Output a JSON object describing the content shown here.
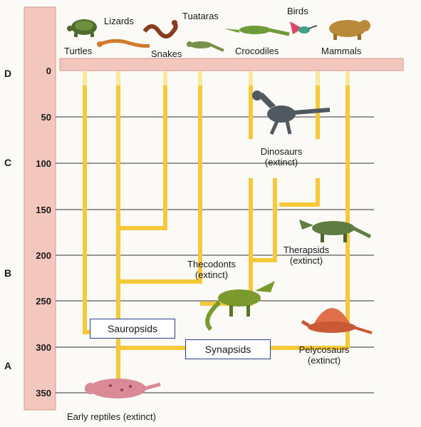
{
  "colors": {
    "time_bar": "#f3c7bd",
    "time_bar_edge": "#d99b8d",
    "branch": "#f5c93a",
    "branch_light": "#fbe89a",
    "box_border": "#2b3f8a",
    "grid_line": "#333333"
  },
  "eras": [
    "D",
    "C",
    "B",
    "A"
  ],
  "time_axis": {
    "ticks": [
      "0",
      "50",
      "100",
      "150",
      "200",
      "250",
      "300",
      "350"
    ],
    "range_million_years_ago": [
      0,
      370
    ]
  },
  "groups": {
    "modern": {
      "turtles": "Turtles",
      "lizards": "Lizards",
      "snakes": "Snakes",
      "tuataras": "Tuataras",
      "crocodiles": "Crocodiles",
      "birds": "Birds",
      "mammals": "Mammals"
    },
    "dinosaurs": [
      "Dinosaurs",
      "(extinct)"
    ],
    "therapsids": [
      "Therapsids",
      "(extinct)"
    ],
    "thecodonts": [
      "Thecodonts",
      "(extinct)"
    ],
    "pelycosaurs": [
      "Pelycosaurs",
      "(extinct)"
    ],
    "sauropsids": "Sauropsids",
    "synapsids": "Synapsids",
    "early_reptiles": "Early reptiles (extinct)"
  },
  "icons": [
    "turtle-icon",
    "lizard-icon",
    "snake-icon",
    "tuatara-icon",
    "crocodile-icon",
    "bird-icon",
    "mammal-icon",
    "dinosaur-icon",
    "therapsid-icon",
    "thecodont-icon",
    "pelycosaur-icon",
    "early-reptile-icon"
  ]
}
